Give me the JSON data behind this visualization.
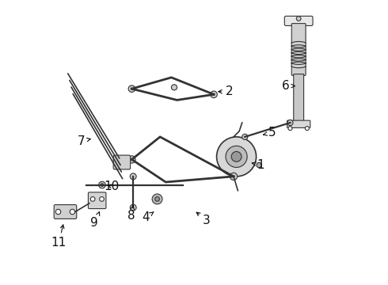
{
  "title": "",
  "background_color": "#ffffff",
  "figure_width": 4.9,
  "figure_height": 3.6,
  "dpi": 100,
  "label_fontsize": 11,
  "label_color": "#111111",
  "line_color": "#333333",
  "line_width": 0.8,
  "labels": [
    [
      1,
      0.735,
      0.42,
      0.695,
      0.43
    ],
    [
      2,
      0.625,
      0.68,
      0.575,
      0.68
    ],
    [
      3,
      0.545,
      0.225,
      0.5,
      0.26
    ],
    [
      4,
      0.33,
      0.235,
      0.365,
      0.26
    ],
    [
      5,
      0.775,
      0.535,
      0.735,
      0.525
    ],
    [
      6,
      0.825,
      0.7,
      0.86,
      0.7
    ],
    [
      7,
      0.1,
      0.505,
      0.145,
      0.515
    ],
    [
      8,
      0.278,
      0.24,
      0.285,
      0.28
    ],
    [
      9,
      0.148,
      0.215,
      0.17,
      0.265
    ],
    [
      10,
      0.21,
      0.345,
      0.185,
      0.352
    ],
    [
      11,
      0.022,
      0.145,
      0.04,
      0.22
    ]
  ]
}
